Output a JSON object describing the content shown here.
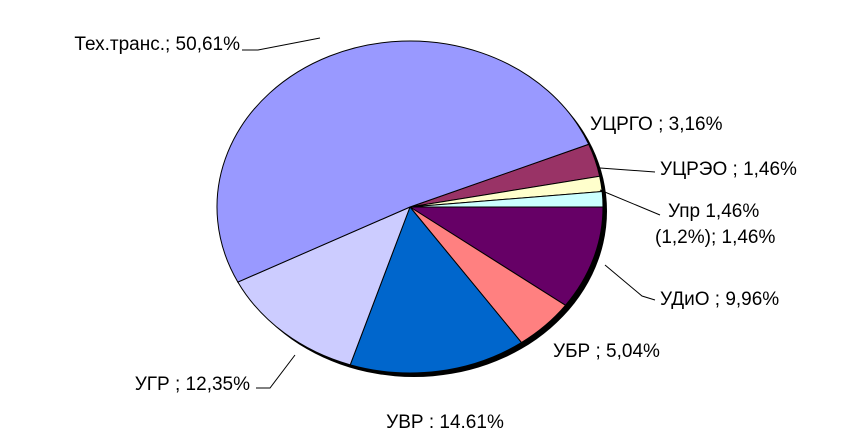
{
  "chart_data": {
    "type": "pie",
    "values": [
      3.16,
      1.46,
      1.46,
      9.96,
      5.04,
      14.61,
      12.35,
      50.61
    ],
    "value_labels": [
      "УЦРГО ; 3,16%",
      "УЦРЭО ; 1,46%",
      "Упр 1,46%\n(1,2%); 1,46%",
      "УДиО ; 9,96%",
      "УБР ; 5,04%",
      "УВР : 14.61%",
      "УГР ; 12,35%",
      "Тех.транс.; 50,61%"
    ],
    "colors": [
      "#993366",
      "#ffffcc",
      "#ccffff",
      "#660066",
      "#ff8080",
      "#0066cc",
      "#ccccff",
      "#9999ff"
    ]
  }
}
